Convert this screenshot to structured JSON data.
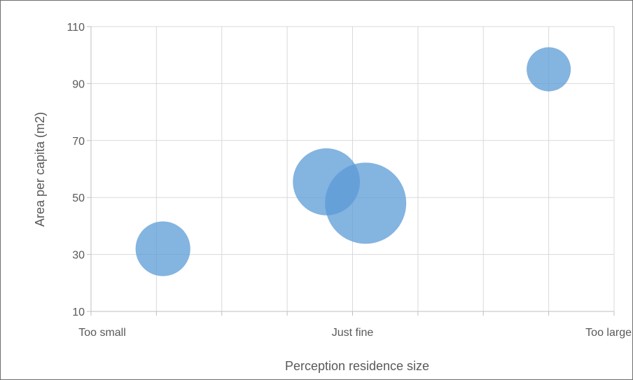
{
  "chart_data": {
    "type": "bubble",
    "title": "",
    "xlabel": "Perception residence size",
    "ylabel": "Area per capita (m2)",
    "xlim": [
      0,
      8
    ],
    "ylim": [
      10,
      110
    ],
    "y_ticks": [
      10,
      30,
      50,
      70,
      90,
      110
    ],
    "x_ticks": [
      {
        "value": 0,
        "label": "Too small"
      },
      {
        "value": 1,
        "label": ""
      },
      {
        "value": 2,
        "label": ""
      },
      {
        "value": 3,
        "label": ""
      },
      {
        "value": 4,
        "label": "Just fine"
      },
      {
        "value": 5,
        "label": ""
      },
      {
        "value": 6,
        "label": ""
      },
      {
        "value": 7,
        "label": ""
      },
      {
        "value": 8,
        "label": "Too large"
      }
    ],
    "grid": true,
    "legend": "none",
    "color": "#5B9BD5",
    "points": [
      {
        "x": 1.1,
        "y": 32,
        "size": 1
      },
      {
        "x": 3.6,
        "y": 55.5,
        "size": 1.5
      },
      {
        "x": 4.2,
        "y": 48,
        "size": 2.2
      },
      {
        "x": 7.0,
        "y": 95,
        "size": 0.65
      }
    ]
  }
}
